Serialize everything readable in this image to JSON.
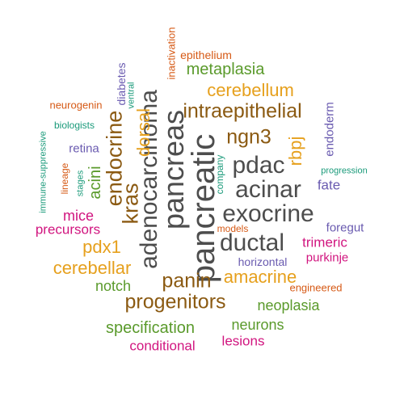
{
  "colors": {
    "gray": "#4d4d4d",
    "orange_gold": "#e6a01d",
    "brown": "#8b5a12",
    "green": "#5a9a2b",
    "magenta": "#d1157f",
    "purple": "#6a5bb0",
    "orange_red": "#d65a16",
    "teal": "#1a9a7a"
  },
  "words": {
    "pancreatic": "pancreatic",
    "pancreas": "pancreas",
    "adenocarcinoma": "adenocarcinoma",
    "exocrine": "exocrine",
    "ductal": "ductal",
    "acinar": "acinar",
    "pdac": "pdac",
    "ngn3": "ngn3",
    "intraepithelial": "intraepithelial",
    "cerebellum": "cerebellum",
    "metaplasia": "metaplasia",
    "epithelium": "epithelium",
    "inactivation": "inactivation",
    "kras": "kras",
    "dorsal": "dorsal",
    "endocrine": "endocrine",
    "acini": "acini",
    "retina": "retina",
    "diabetes": "diabetes",
    "ventral": "ventral",
    "neurogenin": "neurogenin",
    "biologists": "biologists",
    "immune_suppressive": "immune-suppressive",
    "lineage": "lineage",
    "stages": "stages",
    "mice": "mice",
    "precursors": "precursors",
    "pdx1": "pdx1",
    "cerebellar": "cerebellar",
    "notch": "notch",
    "panin": "panin",
    "amacrine": "amacrine",
    "progenitors": "progenitors",
    "neoplasia": "neoplasia",
    "specification": "specification",
    "conditional": "conditional",
    "neurons": "neurons",
    "lesions": "lesions",
    "rbpj": "rbpj",
    "endoderm": "endoderm",
    "progression": "progression",
    "fate": "fate",
    "foregut": "foregut",
    "trimeric": "trimeric",
    "purkinje": "purkinje",
    "horizontal": "horizontal",
    "models": "models",
    "company": "company",
    "engineered": "engineered"
  }
}
